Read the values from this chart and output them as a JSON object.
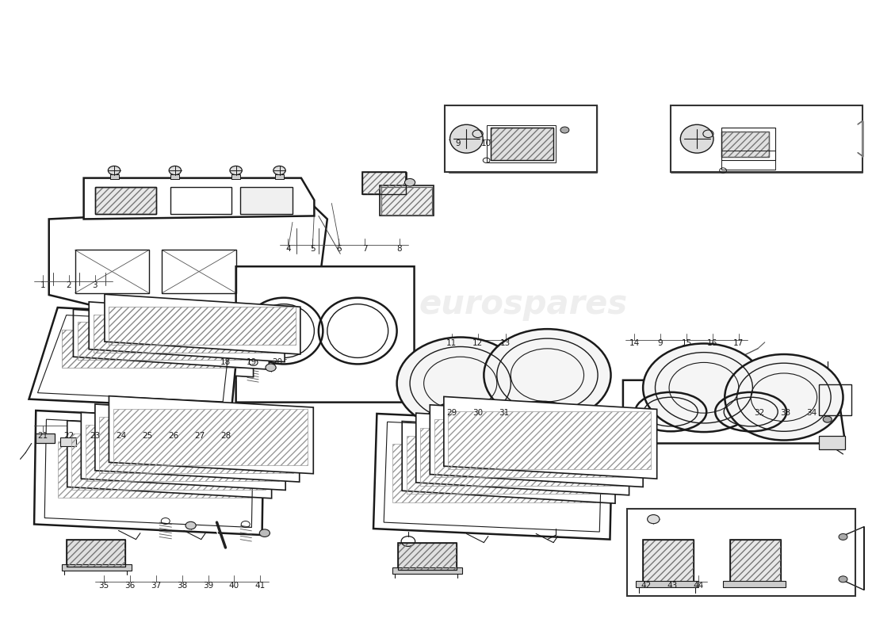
{
  "bg_color": "#ffffff",
  "line_color": "#1a1a1a",
  "watermark_color": "#c8c8c8",
  "watermark_text": "eurospares",
  "figsize": [
    11.0,
    8.0
  ],
  "dpi": 100
}
